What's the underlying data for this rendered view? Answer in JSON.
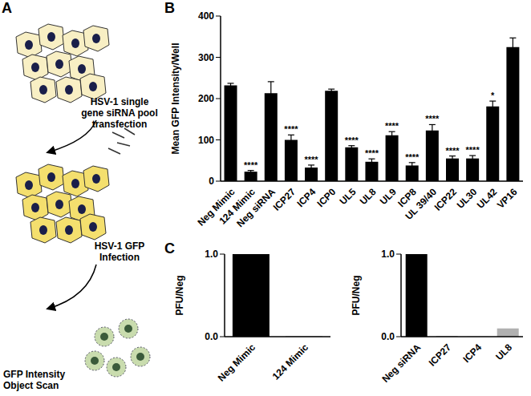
{
  "diagram": {
    "panel": "A",
    "steps": [
      {
        "label": "HSV-1 single gene siRNA pool transfection"
      },
      {
        "label": "HSV-1 GFP Infection"
      },
      {
        "label": "GFP Intensity Object Scan"
      }
    ]
  },
  "chart_data": [
    {
      "panel": "B",
      "type": "bar",
      "y_label": "Mean GFP Intensity/Well",
      "categories": [
        "Neg Mimic",
        "124 Mimic",
        "Neg siRNA",
        "ICP27",
        "ICP4",
        "ICP0",
        "UL5",
        "UL8",
        "UL9",
        "ICP8",
        "UL 39/40",
        "ICP22",
        "UL30",
        "UL42",
        "VP16"
      ],
      "values": [
        232,
        23,
        213,
        100,
        33,
        219,
        82,
        47,
        111,
        38,
        123,
        55,
        55,
        181,
        325
      ],
      "errors": [
        5,
        3,
        28,
        12,
        6,
        4,
        4,
        7,
        9,
        7,
        14,
        6,
        7,
        13,
        22
      ],
      "significance": [
        null,
        "****",
        null,
        "****",
        "****",
        null,
        "****",
        "****",
        "****",
        "****",
        "****",
        "****",
        "****",
        "*",
        null
      ],
      "color": "#000000",
      "ylim": [
        0,
        400
      ],
      "yticks": [
        0,
        100,
        200,
        300,
        400
      ]
    },
    {
      "panel": "C",
      "type": "bar",
      "y_label": "PFU/Neg",
      "categories": [
        "Neg Mimic",
        "124 Mimic"
      ],
      "values": [
        1,
        0.003
      ],
      "colors": [
        "#000000",
        "#000000"
      ],
      "ylim": [
        0,
        1
      ],
      "yticks": [
        {
          "value": 0,
          "label": "0.0"
        },
        {
          "value": 1,
          "label": "1.0"
        }
      ]
    },
    {
      "type": "bar",
      "y_label": "PFU/Neg",
      "categories": [
        "Neg siRNA",
        "ICP27",
        "ICP4",
        "UL8"
      ],
      "values": [
        1,
        0.01,
        0.002,
        0.1
      ],
      "colors": [
        "#000000",
        "#b0b0b0",
        "#b0b0b0",
        "#b0b0b0"
      ],
      "ylim": [
        0,
        1
      ],
      "yticks": [
        {
          "value": 0,
          "label": "0.0"
        },
        {
          "value": 1,
          "label": "1.0"
        }
      ]
    }
  ]
}
